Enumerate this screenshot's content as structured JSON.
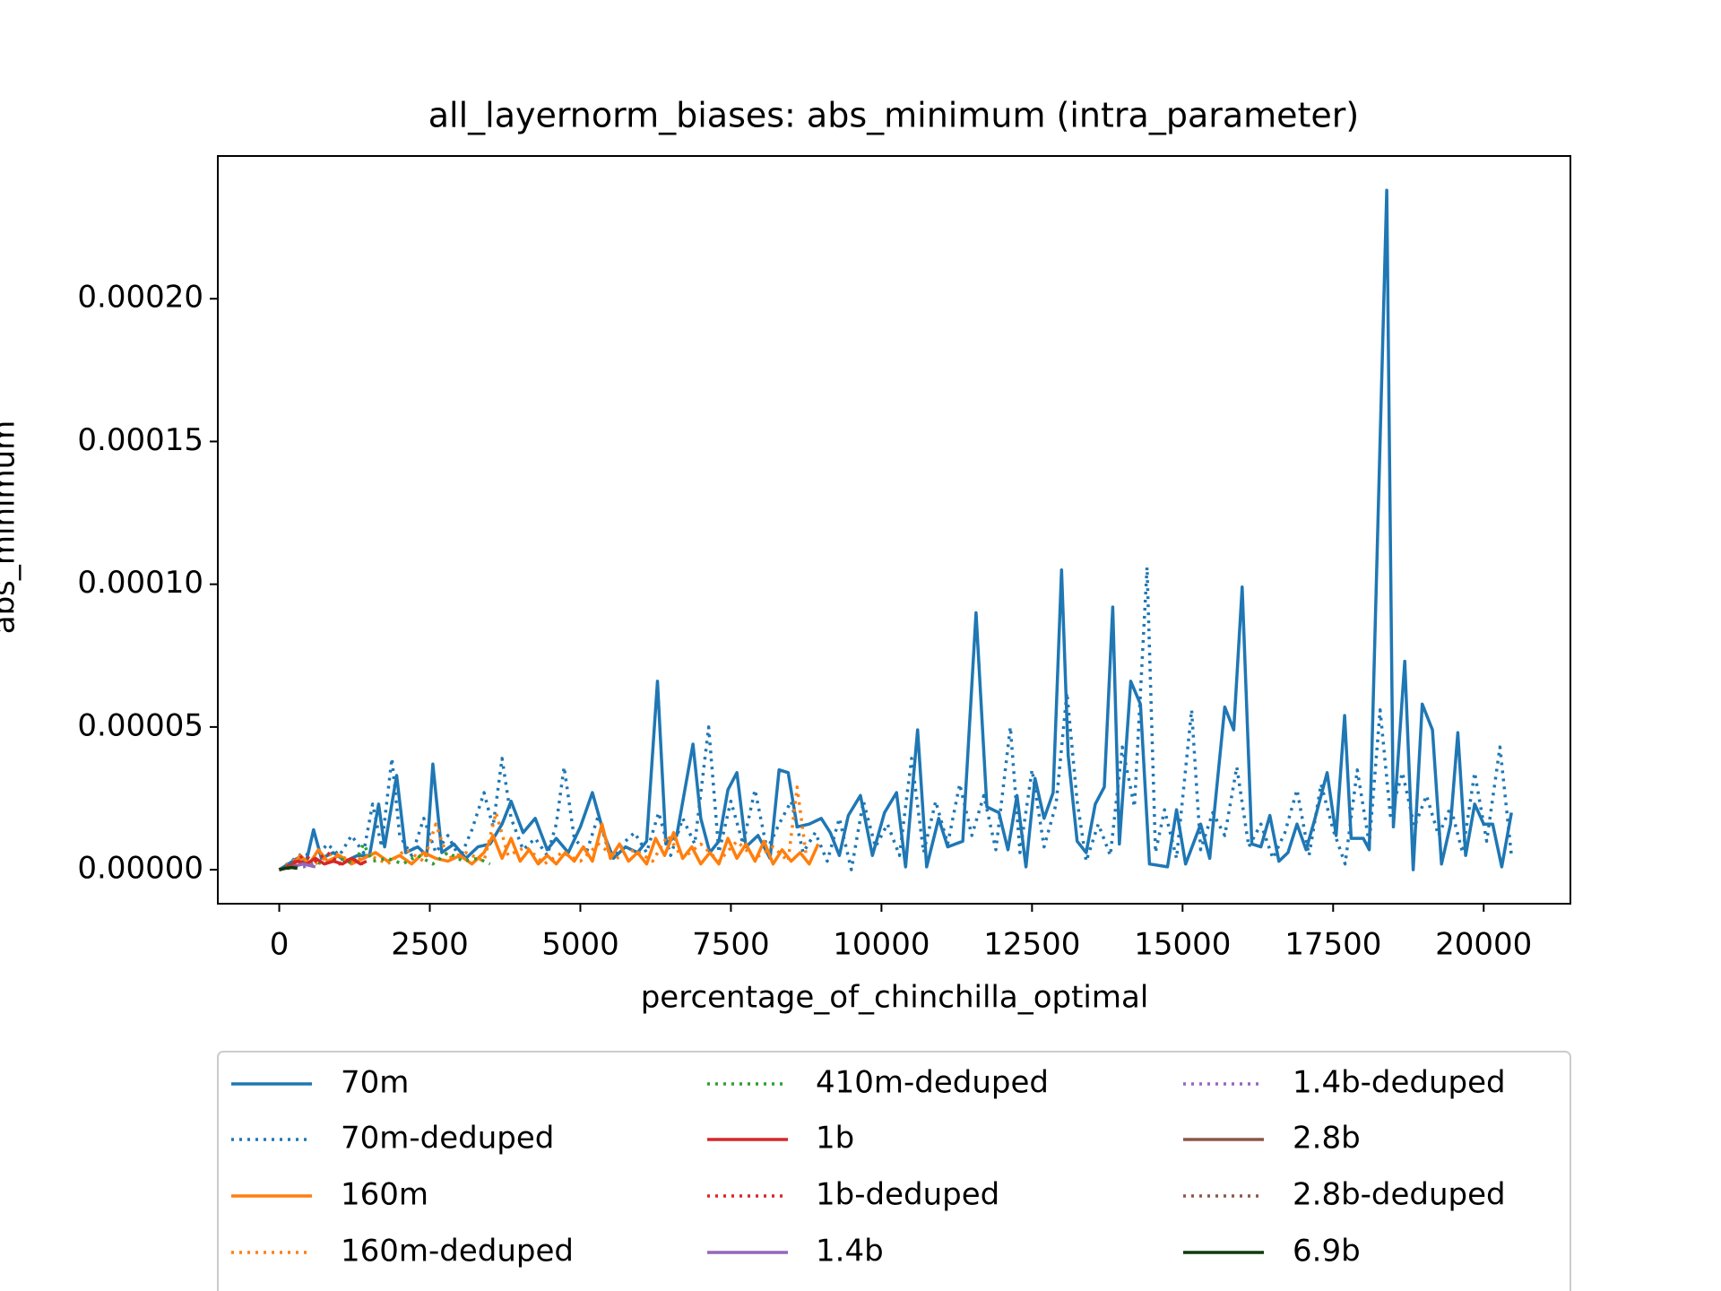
{
  "chart_data": {
    "type": "line",
    "title": "all_layernorm_biases: abs_minimum (intra_parameter)",
    "xlabel": "percentage_of_chinchilla_optimal",
    "ylabel": "abs_minimum",
    "xlim": [
      -1020,
      21440
    ],
    "ylim": [
      -1.19e-05,
      0.00025
    ],
    "xticks": [
      0,
      2500,
      5000,
      7500,
      10000,
      12500,
      15000,
      17500,
      20000
    ],
    "yticks": [
      {
        "value": 0,
        "label": "0.00000"
      },
      {
        "value": 5e-05,
        "label": "0.00005"
      },
      {
        "value": 0.0001,
        "label": "0.00010"
      },
      {
        "value": 0.00015,
        "label": "0.00015"
      },
      {
        "value": 0.0002,
        "label": "0.00020"
      }
    ],
    "series": [
      {
        "name": "70m",
        "color": "#1f77b4",
        "style": "solid",
        "x": [
          0,
          150,
          300,
          450,
          570,
          700,
          900,
          1100,
          1300,
          1500,
          1650,
          1750,
          1950,
          2100,
          2300,
          2450,
          2550,
          2700,
          2900,
          3100,
          3300,
          3500,
          3700,
          3850,
          4050,
          4250,
          4450,
          4600,
          4800,
          5000,
          5200,
          5400,
          5550,
          5750,
          5950,
          6100,
          6280,
          6420,
          6600,
          6870,
          7000,
          7150,
          7300,
          7450,
          7600,
          7750,
          7950,
          8150,
          8300,
          8450,
          8600,
          8800,
          9000,
          9150,
          9300,
          9450,
          9650,
          9850,
          10050,
          10250,
          10400,
          10600,
          10750,
          10950,
          11100,
          11350,
          11570,
          11750,
          11950,
          12100,
          12250,
          12400,
          12550,
          12700,
          12850,
          12990,
          13100,
          13250,
          13400,
          13550,
          13700,
          13840,
          13950,
          14140,
          14300,
          14450,
          14750,
          14900,
          15050,
          15300,
          15450,
          15700,
          15850,
          15990,
          16150,
          16300,
          16450,
          16600,
          16750,
          16900,
          17050,
          17200,
          17400,
          17550,
          17690,
          17800,
          18000,
          18100,
          18390,
          18500,
          18690,
          18830,
          18980,
          19150,
          19300,
          19450,
          19570,
          19700,
          19850,
          20000,
          20150,
          20300,
          20460
        ],
        "values": [
          0,
          2e-06,
          4e-06,
          3e-06,
          1.4e-05,
          4e-06,
          6e-06,
          3e-06,
          5e-06,
          5e-06,
          2.3e-05,
          8e-06,
          3.3e-05,
          6e-06,
          8e-06,
          5e-06,
          3.7e-05,
          6e-06,
          9e-06,
          4e-06,
          8e-06,
          9e-06,
          1.6e-05,
          2.4e-05,
          1.3e-05,
          1.8e-05,
          7e-06,
          1.1e-05,
          6e-06,
          1.5e-05,
          2.7e-05,
          1.2e-05,
          4e-06,
          8e-06,
          6e-06,
          1e-05,
          6.6e-05,
          9e-06,
          1.2e-05,
          4.4e-05,
          1.8e-05,
          6e-06,
          1e-05,
          2.8e-05,
          3.4e-05,
          8e-06,
          1.2e-05,
          4e-06,
          3.5e-05,
          3.4e-05,
          1.5e-05,
          1.6e-05,
          1.8e-05,
          1.3e-05,
          5e-06,
          1.9e-05,
          2.6e-05,
          5e-06,
          2e-05,
          2.7e-05,
          1e-06,
          4.9e-05,
          1e-06,
          1.8e-05,
          8e-06,
          1e-05,
          9e-05,
          2.2e-05,
          2e-05,
          7e-06,
          2.6e-05,
          1e-06,
          3.2e-05,
          1.8e-05,
          2.7e-05,
          0.000105,
          4e-05,
          1e-05,
          6e-06,
          2.3e-05,
          2.9e-05,
          9.2e-05,
          9e-06,
          6.6e-05,
          5.8e-05,
          2e-06,
          1e-06,
          2.1e-05,
          2e-06,
          1.6e-05,
          4e-06,
          5.7e-05,
          4.9e-05,
          9.9e-05,
          9e-06,
          8e-06,
          1.9e-05,
          3e-06,
          6e-06,
          1.6e-05,
          7e-06,
          1.8e-05,
          3.4e-05,
          1.2e-05,
          5.4e-05,
          1.1e-05,
          1.1e-05,
          7e-06,
          0.000238,
          1.5e-05,
          7.3e-05,
          0,
          5.8e-05,
          4.9e-05,
          2e-06,
          1.6e-05,
          4.8e-05,
          5e-06,
          2.3e-05,
          1.6e-05,
          1.6e-05,
          1e-06,
          2e-05
        ]
      },
      {
        "name": "70m-deduped",
        "color": "#1f77b4",
        "style": "dotted",
        "x": [
          0,
          200,
          400,
          600,
          800,
          1000,
          1200,
          1400,
          1550,
          1700,
          1870,
          2000,
          2200,
          2400,
          2600,
          2800,
          3000,
          3200,
          3400,
          3550,
          3700,
          3850,
          4050,
          4250,
          4450,
          4600,
          4730,
          4900,
          5100,
          5300,
          5500,
          5700,
          5900,
          6100,
          6300,
          6500,
          6700,
          6900,
          7130,
          7300,
          7500,
          7700,
          7900,
          8100,
          8300,
          8500,
          8700,
          8900,
          9100,
          9300,
          9500,
          9700,
          9900,
          10100,
          10300,
          10500,
          10700,
          10900,
          11100,
          11300,
          11500,
          11700,
          11900,
          12140,
          12300,
          12500,
          12700,
          12900,
          13080,
          13250,
          13400,
          13600,
          13800,
          14000,
          14200,
          14410,
          14550,
          14700,
          14900,
          15150,
          15300,
          15500,
          15700,
          15900,
          16100,
          16300,
          16500,
          16700,
          16900,
          17100,
          17300,
          17500,
          17700,
          17900,
          18100,
          18280,
          18450,
          18650,
          18850,
          19050,
          19250,
          19450,
          19650,
          19850,
          20050,
          20270,
          20460
        ],
        "values": [
          0,
          3e-06,
          6e-06,
          4e-06,
          9e-06,
          5e-06,
          1.2e-05,
          6e-06,
          2.3e-05,
          8e-06,
          3.9e-05,
          1.2e-05,
          5e-06,
          1.8e-05,
          6e-06,
          1.2e-05,
          4e-06,
          1.4e-05,
          2.7e-05,
          1.5e-05,
          3.9e-05,
          1.8e-05,
          7e-06,
          1.1e-05,
          5e-06,
          1.6e-05,
          3.6e-05,
          1.1e-05,
          6e-06,
          1.9e-05,
          4e-06,
          9e-06,
          1.3e-05,
          6e-06,
          2e-05,
          5e-06,
          1.8e-05,
          9e-06,
          5e-05,
          6e-06,
          2.4e-05,
          9e-06,
          2.8e-05,
          7e-06,
          1.6e-05,
          2.4e-05,
          6e-06,
          1.3e-05,
          3e-06,
          1.8e-05,
          0,
          2.4e-05,
          8e-06,
          1.6e-05,
          5e-06,
          3.9e-05,
          6e-06,
          2.4e-05,
          9e-06,
          3e-05,
          1.2e-05,
          2.6e-05,
          7e-06,
          5e-05,
          6e-06,
          3.5e-05,
          8e-06,
          2.3e-05,
          6.2e-05,
          2.4e-05,
          3e-06,
          1.6e-05,
          5e-06,
          4.3e-05,
          2.2e-05,
          0.000106,
          6e-06,
          2.1e-05,
          4e-06,
          5.6e-05,
          7e-06,
          2e-05,
          1.2e-05,
          3.6e-05,
          8e-06,
          1.6e-05,
          4e-06,
          1.3e-05,
          2.8e-05,
          5e-06,
          3e-05,
          1.4e-05,
          2e-06,
          3.5e-05,
          9e-06,
          5.6e-05,
          1.9e-05,
          3.4e-05,
          1.5e-05,
          2.6e-05,
          1.2e-05,
          2.2e-05,
          6e-06,
          3.4e-05,
          1e-05,
          4.3e-05,
          5e-06
        ]
      },
      {
        "name": "160m",
        "color": "#ff7f0e",
        "style": "solid",
        "x": [
          0,
          200,
          350,
          500,
          650,
          800,
          1000,
          1200,
          1400,
          1600,
          1800,
          2000,
          2200,
          2400,
          2600,
          2800,
          3000,
          3200,
          3400,
          3550,
          3700,
          3850,
          4000,
          4150,
          4300,
          4450,
          4600,
          4750,
          4900,
          5050,
          5200,
          5360,
          5500,
          5650,
          5800,
          5950,
          6100,
          6250,
          6400,
          6550,
          6700,
          6850,
          7000,
          7150,
          7300,
          7450,
          7600,
          7750,
          7900,
          8050,
          8200,
          8350,
          8500,
          8650,
          8800,
          8950
        ],
        "values": [
          0,
          1e-06,
          5e-06,
          2e-06,
          7e-06,
          3e-06,
          5e-06,
          2e-06,
          4e-06,
          6e-06,
          3e-06,
          5e-06,
          2e-06,
          6e-06,
          4e-06,
          3e-06,
          5e-06,
          2e-06,
          6e-06,
          1.2e-05,
          4e-06,
          1.1e-05,
          3e-06,
          7e-06,
          2e-06,
          5e-06,
          2e-06,
          6e-06,
          3e-06,
          8e-06,
          3e-06,
          1.6e-05,
          4e-06,
          9e-06,
          3e-06,
          6e-06,
          2e-06,
          1.1e-05,
          5e-06,
          1.3e-05,
          4e-06,
          8e-06,
          2e-06,
          6e-06,
          2e-06,
          1.1e-05,
          4e-06,
          9e-06,
          3e-06,
          1e-05,
          2e-06,
          7e-06,
          3e-06,
          6e-06,
          2e-06,
          9e-06
        ]
      },
      {
        "name": "160m-deduped",
        "color": "#ff7f0e",
        "style": "dotted",
        "x": [
          0,
          300,
          600,
          900,
          1200,
          1500,
          1800,
          2100,
          2400,
          2600,
          2800,
          3100,
          3400,
          3600,
          3800,
          4100,
          4400,
          4700,
          5000,
          5300,
          5600,
          5900,
          6200,
          6450,
          6700,
          7000,
          7300,
          7600,
          7900,
          8200,
          8450,
          8600,
          8750
        ],
        "values": [
          0,
          4e-06,
          2e-06,
          6e-06,
          3e-06,
          5e-06,
          2e-06,
          7e-06,
          3e-06,
          1.6e-05,
          4e-06,
          6e-06,
          3e-06,
          2e-05,
          5e-06,
          8e-06,
          2e-06,
          6e-06,
          3e-06,
          9e-06,
          4e-06,
          7e-06,
          3e-06,
          1.2e-05,
          4e-06,
          9e-06,
          3e-06,
          1e-05,
          4e-06,
          8e-06,
          3e-06,
          2.9e-05,
          5e-06
        ]
      },
      {
        "name": "410m-deduped",
        "color": "#2ca02c",
        "style": "dotted",
        "x": [
          0,
          250,
          500,
          750,
          1000,
          1250,
          1400,
          1550,
          1800,
          2050,
          2300,
          2550,
          2800,
          3050,
          3300,
          3500
        ],
        "values": [
          0,
          1e-06,
          3e-06,
          2e-06,
          4e-06,
          2e-06,
          9e-06,
          3e-06,
          4e-06,
          2e-06,
          5e-06,
          2e-06,
          6e-06,
          3e-06,
          4e-06,
          2e-06
        ]
      },
      {
        "name": "1b",
        "color": "#d62728",
        "style": "solid",
        "x": [
          0,
          150,
          300,
          450,
          600,
          750,
          900,
          1050,
          1200,
          1350,
          1450
        ],
        "values": [
          0,
          1e-06,
          3e-06,
          2e-06,
          4e-06,
          2e-06,
          3e-06,
          2e-06,
          4e-06,
          2e-06,
          3e-06
        ]
      },
      {
        "name": "1b-deduped",
        "color": "#d62728",
        "style": "dotted",
        "x": [
          0,
          200,
          400,
          600,
          800,
          1000,
          1200,
          1400
        ],
        "values": [
          0,
          2e-06,
          5e-06,
          3e-06,
          6e-06,
          2e-06,
          4e-06,
          2e-06
        ]
      },
      {
        "name": "1.4b",
        "color": "#9467bd",
        "style": "solid",
        "x": [
          0,
          200,
          400,
          600
        ],
        "values": [
          0,
          1e-06,
          2e-06,
          1e-06
        ]
      },
      {
        "name": "1.4b-deduped",
        "color": "#9467bd",
        "style": "dotted",
        "x": [
          0,
          200,
          400,
          600
        ],
        "values": [
          0,
          1e-06,
          1e-06,
          2e-06
        ]
      },
      {
        "name": "2.8b",
        "color": "#8c564b",
        "style": "solid",
        "x": [
          0,
          150,
          300
        ],
        "values": [
          0,
          1e-06,
          1e-06
        ]
      },
      {
        "name": "2.8b-deduped",
        "color": "#8c564b",
        "style": "dotted",
        "x": [
          0,
          150,
          300
        ],
        "values": [
          0,
          5e-07,
          1e-06
        ]
      },
      {
        "name": "6.9b",
        "color": "#0e3b0e",
        "style": "solid",
        "x": [
          0,
          100,
          200,
          300
        ],
        "values": [
          0,
          5e-07,
          8e-07,
          5e-07
        ]
      }
    ]
  }
}
